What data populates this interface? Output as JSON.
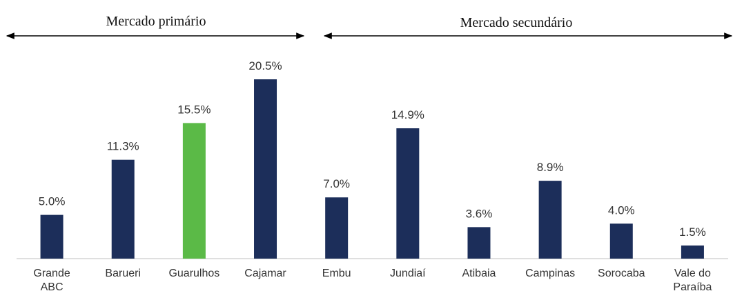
{
  "chart_data": {
    "type": "bar",
    "annotations": [
      "Mercado primário",
      "Mercado secundário"
    ],
    "categories": [
      "Grande\nABC",
      "Barueri",
      "Guarulhos",
      "Cajamar",
      "Embu",
      "Jundiaí",
      "Atibaia",
      "Campinas",
      "Sorocaba",
      "Vale do\nParaíba"
    ],
    "values": [
      5.0,
      11.3,
      15.5,
      20.5,
      7.0,
      14.9,
      3.6,
      8.9,
      4.0,
      1.5
    ],
    "value_labels": [
      "5.0%",
      "11.3%",
      "15.5%",
      "20.5%",
      "7.0%",
      "14.9%",
      "3.6%",
      "8.9%",
      "4.0%",
      "1.5%"
    ],
    "colors": [
      "#1c2e5a",
      "#1c2e5a",
      "#5bba47",
      "#1c2e5a",
      "#1c2e5a",
      "#1c2e5a",
      "#1c2e5a",
      "#1c2e5a",
      "#1c2e5a",
      "#1c2e5a"
    ]
  }
}
